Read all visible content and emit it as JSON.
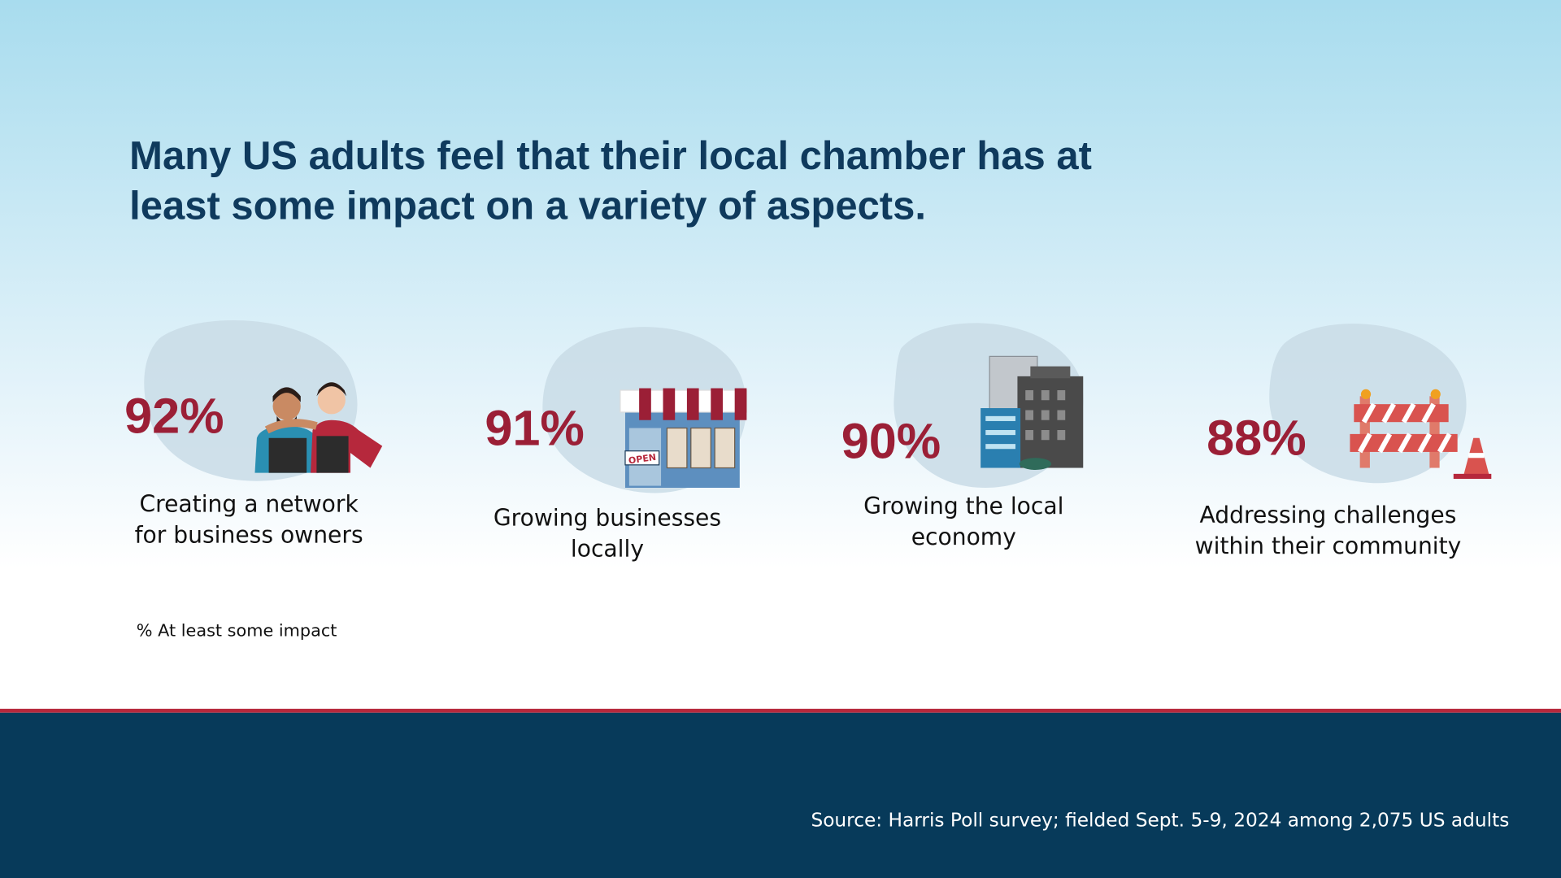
{
  "title": [
    "Many US adults feel that their local chamber has at",
    "least some impact on a variety of aspects."
  ],
  "items": [
    {
      "percent": "92%",
      "label": [
        "Creating a network",
        "for business owners"
      ]
    },
    {
      "percent": "91%",
      "label": [
        "Growing businesses",
        "locally"
      ]
    },
    {
      "percent": "90%",
      "label": [
        "Growing the local",
        "economy"
      ]
    },
    {
      "percent": "88%",
      "label": [
        "Addressing challenges",
        "within their community"
      ]
    }
  ],
  "note": "% At least some impact",
  "source": "Source: Harris Poll survey; fielded Sept. 5-9, 2024 among 2,075 US adults"
}
